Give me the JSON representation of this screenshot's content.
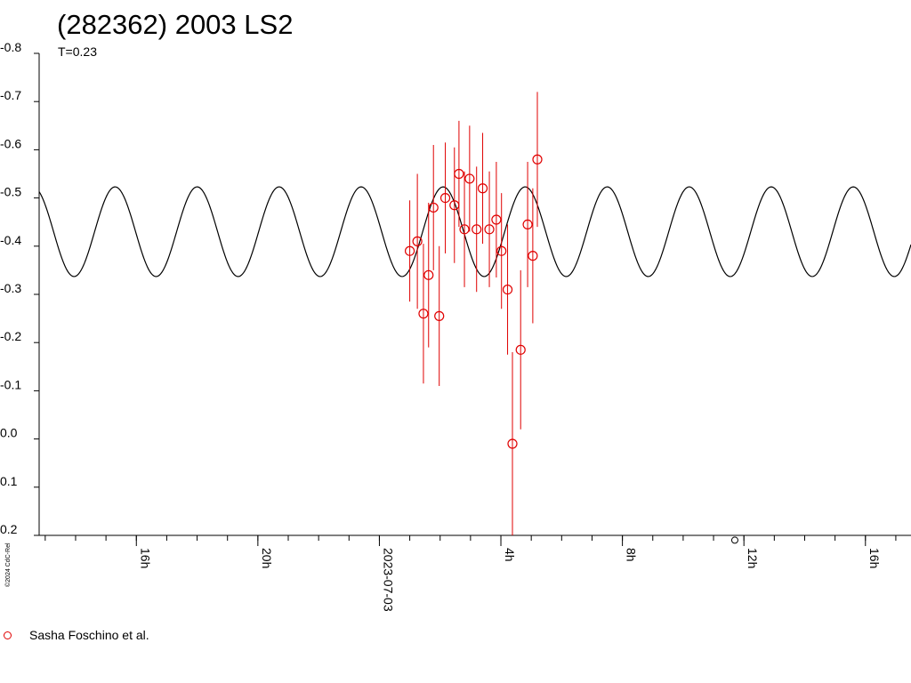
{
  "chart_data": {
    "type": "scatter",
    "title": "(282362) 2003 LS2",
    "subtitle": "T=0.23",
    "y_axis": {
      "reversed": true,
      "range": [
        -0.8,
        0.2
      ],
      "tick_labels": [
        "-0.8",
        "-0.7",
        "-0.6",
        "-0.5",
        "-0.4",
        "-0.3",
        "-0.2",
        "-0.1",
        "0.0",
        "0.1",
        "0.2"
      ],
      "tick_values": [
        -0.8,
        -0.7,
        -0.6,
        -0.5,
        -0.4,
        -0.3,
        -0.2,
        -0.1,
        0.0,
        0.1,
        0.2
      ]
    },
    "x_axis": {
      "range_hours": [
        12.8,
        41.5
      ],
      "tick_labels": [
        {
          "label": "16h",
          "hour": 16
        },
        {
          "label": "20h",
          "hour": 20
        },
        {
          "label": "2023-07-03",
          "hour": 24
        },
        {
          "label": "4h",
          "hour": 28
        },
        {
          "label": "8h",
          "hour": 32
        },
        {
          "label": "12h",
          "hour": 36
        },
        {
          "label": "16h",
          "hour": 40
        }
      ],
      "minor_step_hours": 1
    },
    "model_curve": {
      "amplitude": 0.093,
      "center": -0.43,
      "period_hours": 2.7,
      "peak_hour": 26.1,
      "color": "#000000"
    },
    "series": [
      {
        "name": "Sasha Foschino et al.",
        "color": "#e00000",
        "marker": "open-circle",
        "points": [
          {
            "x": 25.0,
            "y": -0.39,
            "err": 0.105
          },
          {
            "x": 25.25,
            "y": -0.41,
            "err": 0.14
          },
          {
            "x": 25.45,
            "y": -0.26,
            "err": 0.145
          },
          {
            "x": 25.62,
            "y": -0.34,
            "err": 0.15
          },
          {
            "x": 25.78,
            "y": -0.48,
            "err": 0.13
          },
          {
            "x": 25.97,
            "y": -0.255,
            "err": 0.145
          },
          {
            "x": 26.17,
            "y": -0.5,
            "err": 0.115
          },
          {
            "x": 26.47,
            "y": -0.485,
            "err": 0.12
          },
          {
            "x": 26.62,
            "y": -0.55,
            "err": 0.11
          },
          {
            "x": 26.8,
            "y": -0.435,
            "err": 0.12
          },
          {
            "x": 26.97,
            "y": -0.54,
            "err": 0.11
          },
          {
            "x": 27.2,
            "y": -0.435,
            "err": 0.13
          },
          {
            "x": 27.4,
            "y": -0.52,
            "err": 0.115
          },
          {
            "x": 27.62,
            "y": -0.435,
            "err": 0.12
          },
          {
            "x": 27.85,
            "y": -0.455,
            "err": 0.12
          },
          {
            "x": 28.02,
            "y": -0.39,
            "err": 0.12
          },
          {
            "x": 28.22,
            "y": -0.31,
            "err": 0.135
          },
          {
            "x": 28.38,
            "y": 0.01,
            "err": 0.19
          },
          {
            "x": 28.65,
            "y": -0.185,
            "err": 0.165
          },
          {
            "x": 28.88,
            "y": -0.445,
            "err": 0.13
          },
          {
            "x": 29.05,
            "y": -0.38,
            "err": 0.14
          },
          {
            "x": 29.2,
            "y": -0.58,
            "err": 0.14
          }
        ]
      }
    ],
    "stray_point": {
      "x": 35.7,
      "y": 0.21
    },
    "legend_position": "bottom-left",
    "grid": false,
    "credit": "©2024 CdC-Rel"
  }
}
